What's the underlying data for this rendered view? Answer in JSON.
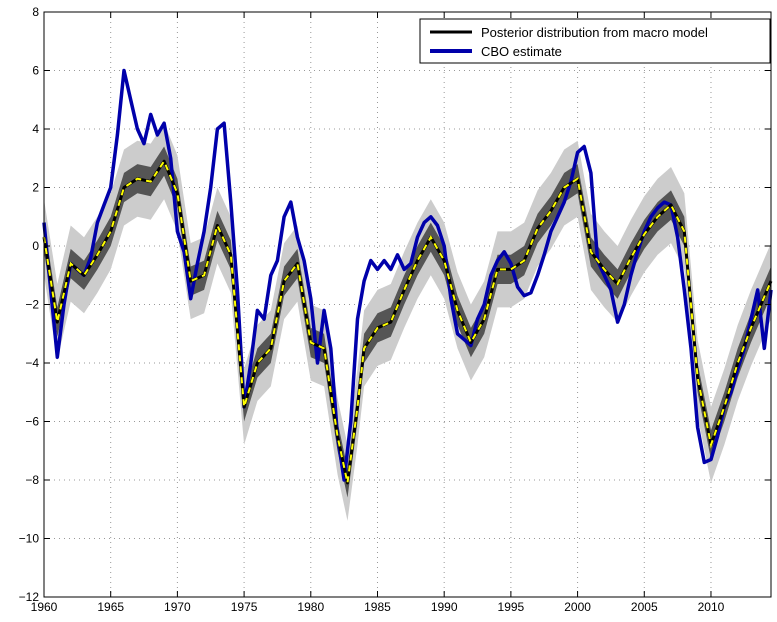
{
  "chart_data": {
    "type": "line",
    "title": "",
    "xlabel": "",
    "ylabel": "",
    "xlim": [
      1960,
      2014.5
    ],
    "ylim": [
      -12,
      8
    ],
    "x_ticks": [
      1960,
      1965,
      1970,
      1975,
      1980,
      1985,
      1990,
      1995,
      2000,
      2005,
      2010
    ],
    "y_ticks": [
      -12,
      -10,
      -8,
      -6,
      -4,
      -2,
      0,
      2,
      4,
      6,
      8
    ],
    "grid": true,
    "legend_position": "top-right",
    "colors": {
      "posterior": "#000000",
      "median_dash": "#ffff00",
      "cbo": "#0000aa",
      "band_inner": "#555555",
      "band_outer": "#cccccc"
    },
    "series": [
      {
        "name": "Posterior distribution from macro model",
        "x": [
          1960,
          1961,
          1962,
          1963,
          1964,
          1965,
          1966,
          1967,
          1968,
          1969,
          1970,
          1971,
          1972,
          1973,
          1974,
          1975,
          1976,
          1977,
          1978,
          1979,
          1980,
          1981,
          1982,
          1982.75,
          1983.5,
          1984,
          1985,
          1986,
          1987,
          1988,
          1989,
          1990,
          1991,
          1992,
          1993,
          1994,
          1995,
          1996,
          1997,
          1998,
          1999,
          2000,
          2001,
          2002,
          2003,
          2004,
          2005,
          2006,
          2007,
          2008,
          2009,
          2010,
          2011,
          2012,
          2013,
          2014.5
        ],
        "values": [
          0.3,
          -2.6,
          -0.6,
          -1.0,
          -0.3,
          0.5,
          2.0,
          2.3,
          2.2,
          2.9,
          1.8,
          -1.2,
          -1.0,
          0.7,
          -0.3,
          -5.5,
          -4.0,
          -3.5,
          -1.2,
          -0.6,
          -3.3,
          -3.5,
          -6.5,
          -8.1,
          -5.5,
          -3.5,
          -2.8,
          -2.6,
          -1.5,
          -0.5,
          0.3,
          -0.5,
          -2.2,
          -3.3,
          -2.5,
          -0.8,
          -0.8,
          -0.5,
          0.6,
          1.2,
          2.0,
          2.3,
          -0.2,
          -0.8,
          -1.3,
          -0.4,
          0.4,
          1.0,
          1.4,
          0.5,
          -4.5,
          -6.8,
          -5.5,
          -4.0,
          -2.8,
          -1.2
        ],
        "band_inner_halfwidth": 0.5,
        "band_outer_halfwidth": 1.3
      },
      {
        "name": "CBO estimate",
        "x": [
          1960,
          1960.5,
          1961,
          1961.5,
          1962,
          1962.5,
          1963,
          1963.5,
          1964,
          1964.5,
          1965,
          1965.5,
          1966,
          1966.5,
          1967,
          1967.5,
          1968,
          1968.5,
          1969,
          1969.5,
          1970,
          1970.5,
          1971,
          1971.5,
          1972,
          1972.5,
          1973,
          1973.5,
          1974,
          1974.5,
          1975,
          1975.5,
          1976,
          1976.5,
          1977,
          1977.5,
          1978,
          1978.5,
          1979,
          1979.5,
          1980,
          1980.5,
          1981,
          1981.5,
          1982,
          1982.5,
          1983,
          1983.5,
          1984,
          1984.5,
          1985,
          1985.5,
          1986,
          1986.5,
          1987,
          1987.5,
          1988,
          1988.5,
          1989,
          1989.5,
          1990,
          1990.5,
          1991,
          1991.5,
          1992,
          1992.5,
          1993,
          1993.5,
          1994,
          1994.5,
          1995,
          1995.5,
          1996,
          1996.5,
          1997,
          1997.5,
          1998,
          1998.5,
          1999,
          1999.5,
          2000,
          2000.5,
          2001,
          2001.5,
          2002,
          2002.5,
          2003,
          2003.5,
          2004,
          2004.5,
          2005,
          2005.5,
          2006,
          2006.5,
          2007,
          2007.5,
          2008,
          2008.5,
          2009,
          2009.5,
          2010,
          2010.5,
          2011,
          2011.5,
          2012,
          2012.5,
          2013,
          2013.5,
          2014,
          2014.5
        ],
        "values": [
          0.8,
          -1.5,
          -3.8,
          -2.0,
          -0.6,
          -0.8,
          -1.0,
          -0.4,
          0.8,
          1.4,
          2.0,
          3.8,
          6.0,
          5.0,
          4.0,
          3.5,
          4.5,
          3.8,
          4.2,
          3.0,
          0.5,
          -0.2,
          -1.8,
          -0.6,
          0.5,
          2.0,
          4.0,
          4.2,
          1.5,
          -1.5,
          -5.5,
          -4.0,
          -2.2,
          -2.5,
          -1.0,
          -0.5,
          1.0,
          1.5,
          0.3,
          -0.5,
          -1.8,
          -4.0,
          -2.2,
          -3.5,
          -6.5,
          -8.0,
          -6.0,
          -2.5,
          -1.2,
          -0.5,
          -0.8,
          -0.5,
          -0.8,
          -0.3,
          -0.8,
          -0.6,
          0.3,
          0.8,
          1.0,
          0.7,
          0.0,
          -1.8,
          -3.0,
          -3.2,
          -3.4,
          -2.5,
          -2.0,
          -1.0,
          -0.5,
          -0.2,
          -0.6,
          -1.4,
          -1.7,
          -1.6,
          -1.0,
          -0.3,
          0.5,
          1.0,
          1.5,
          2.2,
          3.2,
          3.4,
          2.5,
          -0.5,
          -1.0,
          -1.5,
          -2.6,
          -2.0,
          -1.0,
          -0.2,
          0.5,
          1.0,
          1.3,
          1.5,
          1.4,
          0.3,
          -1.5,
          -3.5,
          -6.2,
          -7.4,
          -7.3,
          -6.5,
          -5.5,
          -5.0,
          -4.2,
          -3.5,
          -2.5,
          -1.5,
          -3.5,
          -1.5
        ]
      }
    ]
  }
}
